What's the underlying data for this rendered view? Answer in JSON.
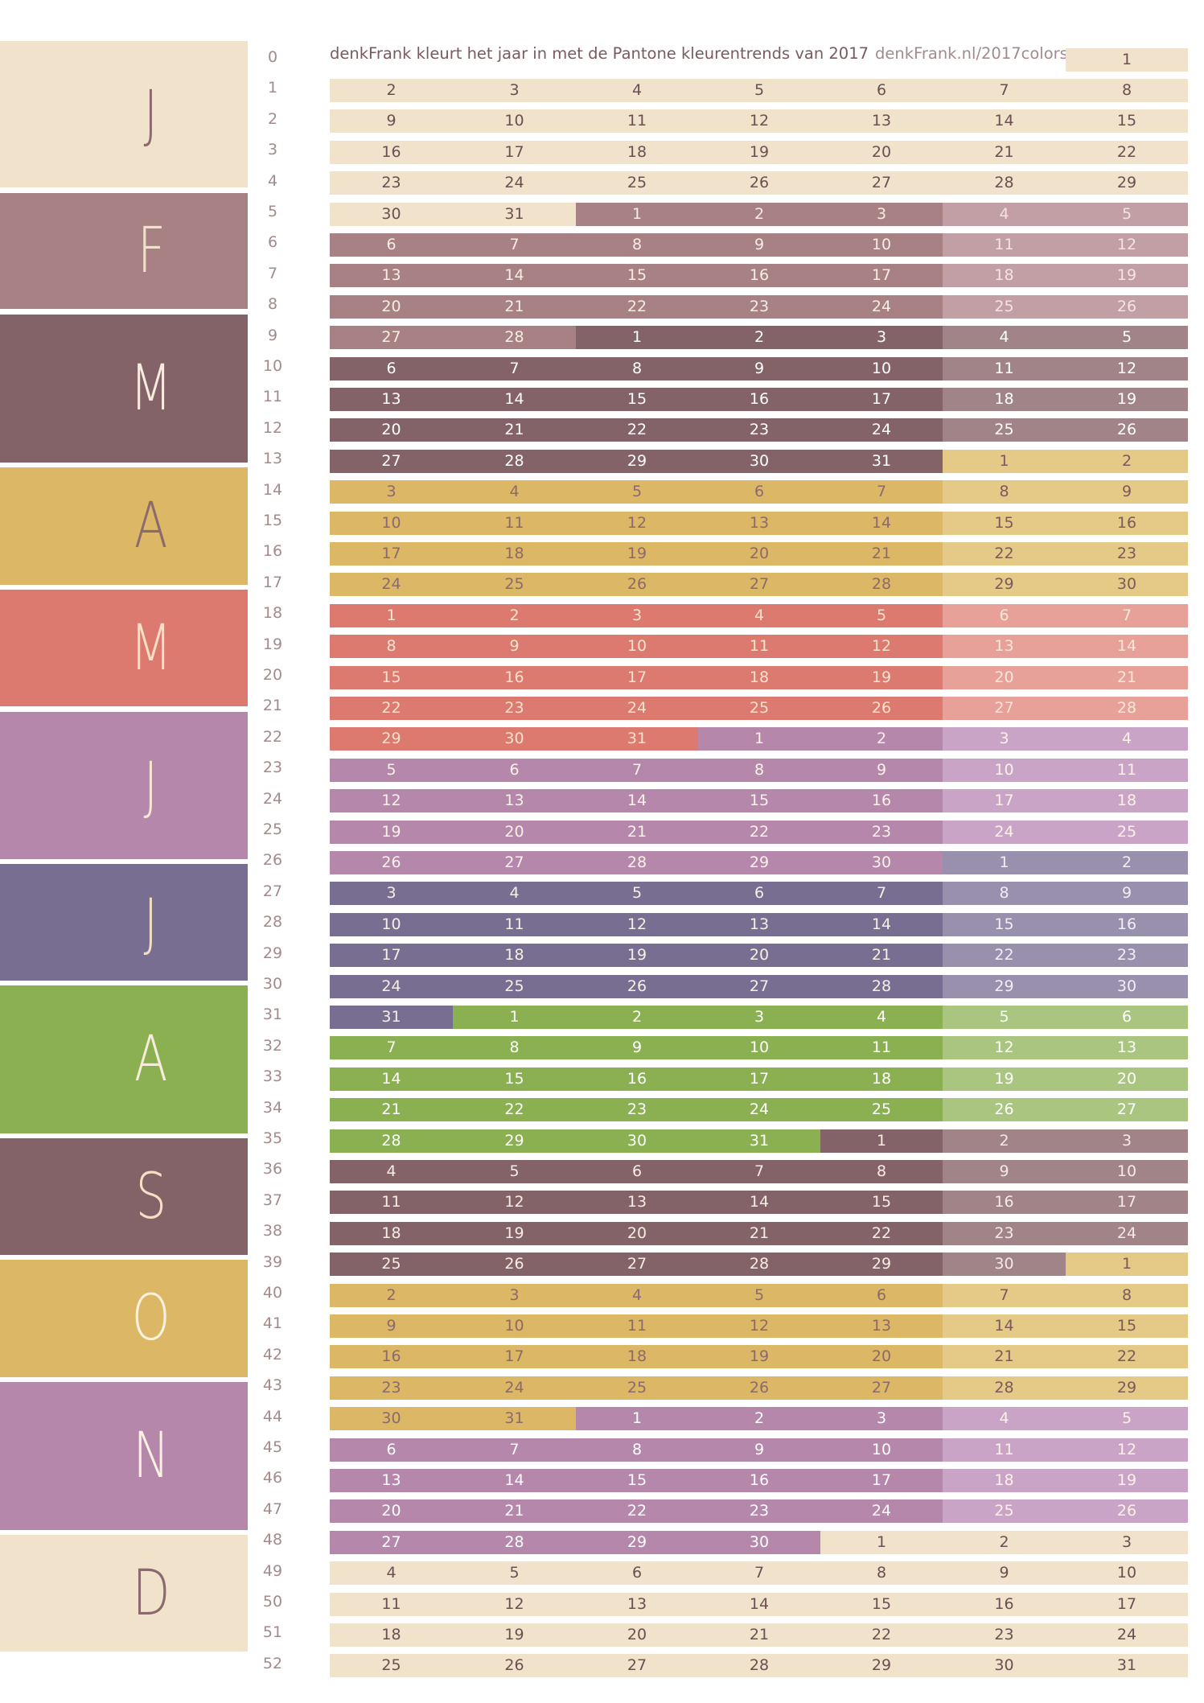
{
  "title": "denkFrank kleurt het jaar in met de Pantone kleurentrends van 2017",
  "url": "denkFrank.nl/2017colors",
  "months": [
    {
      "letter": "J",
      "bg": "#f1e2cc",
      "fg": "#8a6a6e",
      "days": 31
    },
    {
      "letter": "F",
      "bg": "#a88184",
      "fg": "#f1e2cc",
      "days": 28
    },
    {
      "letter": "M",
      "bg": "#846368",
      "fg": "#f8ecde",
      "days": 31
    },
    {
      "letter": "A",
      "bg": "#dcb765",
      "fg": "#8a6a6e",
      "days": 30
    },
    {
      "letter": "M",
      "bg": "#dc7a70",
      "fg": "#f6dfc4",
      "days": 31
    },
    {
      "letter": "J",
      "bg": "#b487ab",
      "fg": "#f6e6d2",
      "days": 30
    },
    {
      "letter": "J",
      "bg": "#786e92",
      "fg": "#f0dfc2",
      "days": 31
    },
    {
      "letter": "A",
      "bg": "#8bb052",
      "fg": "#f6ecdb",
      "days": 31
    },
    {
      "letter": "S",
      "bg": "#846368",
      "fg": "#f6dfc4",
      "days": 30
    },
    {
      "letter": "O",
      "bg": "#dcb765",
      "fg": "#fbf1e1",
      "days": 31
    },
    {
      "letter": "N",
      "bg": "#b487ab",
      "fg": "#fbf1e1",
      "days": 30
    },
    {
      "letter": "D",
      "bg": "#f1e2cc",
      "fg": "#8a6a6e",
      "days": 31
    }
  ],
  "weekend_colors": [
    "#f1e2cc",
    "#c19fa4",
    "#a08487",
    "#e5c987",
    "#e8a198",
    "#caa4c6",
    "#9890ac",
    "#a9c580",
    "#a08487",
    "#e5c987",
    "#caa4c6",
    "#f1e2cc"
  ],
  "weekday_text_colors": [
    "#6b4f52",
    "#f7ede0",
    "#ffffff",
    "#8a6a6e",
    "#f7e3cd",
    "#fbf1e6",
    "#f7efe3",
    "#ffffff",
    "#f7ede0",
    "#8a6a6e",
    "#ffffff",
    "#6b4f52"
  ],
  "weekend_text_colors": [
    "#6b4f52",
    "#f5e3e2",
    "#ffffff",
    "#7a5a5e",
    "#f7e7db",
    "#fbf1e6",
    "#f1eef5",
    "#ffffff",
    "#f5e9e6",
    "#7a5a5e",
    "#fbf1e6",
    "#6b4f52"
  ],
  "week_count": 53
}
